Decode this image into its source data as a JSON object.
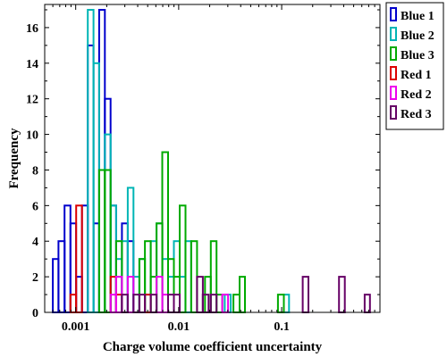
{
  "chart_data": {
    "type": "bar",
    "subtype": "step-histogram",
    "title": "",
    "xlabel": "Charge volume coefficient uncertainty",
    "ylabel": "Frequency",
    "xscale": "log",
    "xlim": [
      0.0005,
      0.9
    ],
    "ylim": [
      0,
      17.3
    ],
    "x_ticks": [
      {
        "value": 0.001,
        "label": "0.001"
      },
      {
        "value": 0.01,
        "label": "0.01"
      },
      {
        "value": 0.1,
        "label": "0.1"
      }
    ],
    "y_ticks": [
      0,
      2,
      4,
      6,
      8,
      10,
      12,
      14,
      16
    ],
    "legend_position": "right-outside-top",
    "series": [
      {
        "name": "Blue 1",
        "color": "#0000cc",
        "bins": [
          {
            "x0": 0.0006,
            "x1": 0.00068,
            "count": 3
          },
          {
            "x0": 0.00068,
            "x1": 0.00078,
            "count": 4
          },
          {
            "x0": 0.00078,
            "x1": 0.00089,
            "count": 6
          },
          {
            "x0": 0.00089,
            "x1": 0.00101,
            "count": 5
          },
          {
            "x0": 0.00101,
            "x1": 0.00115,
            "count": 2
          },
          {
            "x0": 0.00115,
            "x1": 0.00131,
            "count": 6
          },
          {
            "x0": 0.00131,
            "x1": 0.00149,
            "count": 15
          },
          {
            "x0": 0.00149,
            "x1": 0.00169,
            "count": 5
          },
          {
            "x0": 0.00169,
            "x1": 0.00192,
            "count": 17
          },
          {
            "x0": 0.00192,
            "x1": 0.00218,
            "count": 12
          },
          {
            "x0": 0.00218,
            "x1": 0.00247,
            "count": 6
          },
          {
            "x0": 0.00247,
            "x1": 0.00281,
            "count": 2
          },
          {
            "x0": 0.00281,
            "x1": 0.0032,
            "count": 5
          },
          {
            "x0": 0.0032,
            "x1": 0.00364,
            "count": 4
          }
        ]
      },
      {
        "name": "Blue 2",
        "color": "#00b5b5",
        "bins": [
          {
            "x0": 0.00131,
            "x1": 0.00149,
            "count": 17
          },
          {
            "x0": 0.00149,
            "x1": 0.00169,
            "count": 14
          },
          {
            "x0": 0.00169,
            "x1": 0.00192,
            "count": 8
          },
          {
            "x0": 0.00192,
            "x1": 0.00218,
            "count": 10
          },
          {
            "x0": 0.00218,
            "x1": 0.00247,
            "count": 6
          },
          {
            "x0": 0.00247,
            "x1": 0.00281,
            "count": 3
          },
          {
            "x0": 0.00281,
            "x1": 0.0032,
            "count": 4
          },
          {
            "x0": 0.0032,
            "x1": 0.00364,
            "count": 7
          },
          {
            "x0": 0.00364,
            "x1": 0.00415,
            "count": 2
          },
          {
            "x0": 0.00415,
            "x1": 0.0047,
            "count": 3
          },
          {
            "x0": 0.0047,
            "x1": 0.00535,
            "count": 1
          },
          {
            "x0": 0.00535,
            "x1": 0.00609,
            "count": 4
          },
          {
            "x0": 0.00609,
            "x1": 0.00693,
            "count": 5
          },
          {
            "x0": 0.00693,
            "x1": 0.00789,
            "count": 3
          },
          {
            "x0": 0.00789,
            "x1": 0.00898,
            "count": 2
          },
          {
            "x0": 0.00898,
            "x1": 0.01022,
            "count": 4
          },
          {
            "x0": 0.01022,
            "x1": 0.01163,
            "count": 2
          },
          {
            "x0": 0.01163,
            "x1": 0.01323,
            "count": 4
          },
          {
            "x0": 0.028,
            "x1": 0.032,
            "count": 1
          },
          {
            "x0": 0.105,
            "x1": 0.118,
            "count": 1
          }
        ]
      },
      {
        "name": "Blue 3",
        "color": "#00aa00",
        "bins": [
          {
            "x0": 0.00169,
            "x1": 0.00192,
            "count": 8
          },
          {
            "x0": 0.00192,
            "x1": 0.00218,
            "count": 8
          },
          {
            "x0": 0.00247,
            "x1": 0.00281,
            "count": 4
          },
          {
            "x0": 0.00415,
            "x1": 0.0047,
            "count": 3
          },
          {
            "x0": 0.0047,
            "x1": 0.00535,
            "count": 4
          },
          {
            "x0": 0.00535,
            "x1": 0.00609,
            "count": 2
          },
          {
            "x0": 0.00609,
            "x1": 0.00693,
            "count": 5
          },
          {
            "x0": 0.00693,
            "x1": 0.00789,
            "count": 9
          },
          {
            "x0": 0.00789,
            "x1": 0.00898,
            "count": 3
          },
          {
            "x0": 0.00898,
            "x1": 0.01022,
            "count": 2
          },
          {
            "x0": 0.01022,
            "x1": 0.01163,
            "count": 6
          },
          {
            "x0": 0.01323,
            "x1": 0.01506,
            "count": 4
          },
          {
            "x0": 0.018,
            "x1": 0.0205,
            "count": 2
          },
          {
            "x0": 0.0205,
            "x1": 0.0233,
            "count": 4
          },
          {
            "x0": 0.0233,
            "x1": 0.0265,
            "count": 1
          },
          {
            "x0": 0.034,
            "x1": 0.039,
            "count": 1
          },
          {
            "x0": 0.039,
            "x1": 0.044,
            "count": 2
          },
          {
            "x0": 0.092,
            "x1": 0.105,
            "count": 1
          }
        ]
      },
      {
        "name": "Red 1",
        "color": "#dd0000",
        "bins": [
          {
            "x0": 0.00089,
            "x1": 0.00101,
            "count": 1
          },
          {
            "x0": 0.00101,
            "x1": 0.00115,
            "count": 6
          },
          {
            "x0": 0.00218,
            "x1": 0.00247,
            "count": 2
          },
          {
            "x0": 0.00247,
            "x1": 0.00281,
            "count": 1
          },
          {
            "x0": 0.0047,
            "x1": 0.00535,
            "count": 1
          }
        ]
      },
      {
        "name": "Red 2",
        "color": "#ee00ee",
        "bins": [
          {
            "x0": 0.00218,
            "x1": 0.00247,
            "count": 1
          },
          {
            "x0": 0.00247,
            "x1": 0.00281,
            "count": 2
          },
          {
            "x0": 0.0032,
            "x1": 0.00364,
            "count": 2
          },
          {
            "x0": 0.00609,
            "x1": 0.00693,
            "count": 2
          },
          {
            "x0": 0.00693,
            "x1": 0.00789,
            "count": 1
          },
          {
            "x0": 0.0265,
            "x1": 0.0302,
            "count": 1
          }
        ]
      },
      {
        "name": "Red 3",
        "color": "#660066",
        "bins": [
          {
            "x0": 0.00281,
            "x1": 0.0032,
            "count": 1
          },
          {
            "x0": 0.00364,
            "x1": 0.00415,
            "count": 1
          },
          {
            "x0": 0.00415,
            "x1": 0.0047,
            "count": 1
          },
          {
            "x0": 0.00535,
            "x1": 0.00609,
            "count": 1
          },
          {
            "x0": 0.00789,
            "x1": 0.00898,
            "count": 1
          },
          {
            "x0": 0.00898,
            "x1": 0.01022,
            "count": 1
          },
          {
            "x0": 0.01506,
            "x1": 0.01714,
            "count": 2
          },
          {
            "x0": 0.01714,
            "x1": 0.0195,
            "count": 1
          },
          {
            "x0": 0.0205,
            "x1": 0.0233,
            "count": 1
          },
          {
            "x0": 0.16,
            "x1": 0.182,
            "count": 2
          },
          {
            "x0": 0.36,
            "x1": 0.41,
            "count": 2
          },
          {
            "x0": 0.64,
            "x1": 0.72,
            "count": 1
          }
        ]
      }
    ]
  }
}
